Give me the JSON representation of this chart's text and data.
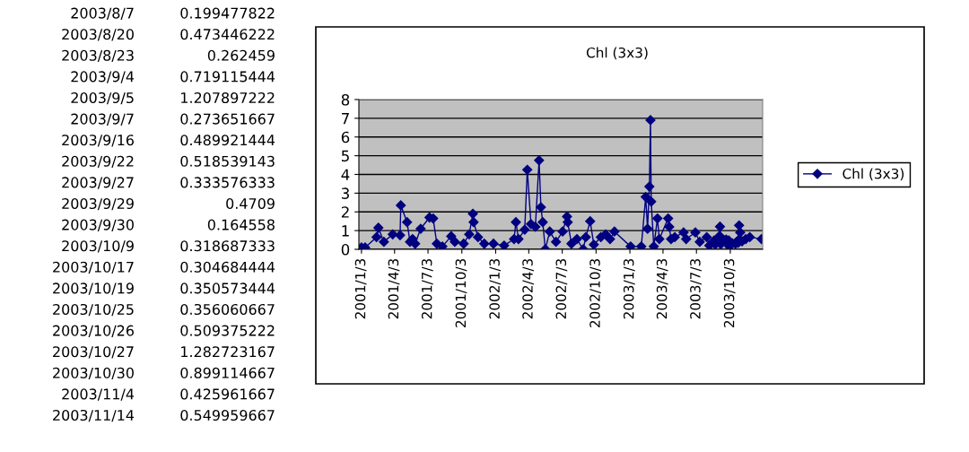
{
  "chart_data": {
    "type": "line",
    "title": "Chl (3x3)",
    "legend": "right",
    "grid": "y",
    "marker": "diamond",
    "line_style": "solid",
    "xlim": [
      "2000-12-27",
      "2003-12-30"
    ],
    "ylim": [
      0,
      8
    ],
    "yticks": [
      0,
      1,
      2,
      3,
      4,
      5,
      6,
      7,
      8
    ],
    "xticks": [
      {
        "value": "2001-01-03",
        "label": "2001/1/3"
      },
      {
        "value": "2001-04-03",
        "label": "2001/4/3"
      },
      {
        "value": "2001-07-03",
        "label": "2001/7/3"
      },
      {
        "value": "2001-10-03",
        "label": "2001/10/3"
      },
      {
        "value": "2002-01-03",
        "label": "2002/1/3"
      },
      {
        "value": "2002-04-03",
        "label": "2002/4/3"
      },
      {
        "value": "2002-07-03",
        "label": "2002/7/3"
      },
      {
        "value": "2002-10-03",
        "label": "2002/10/3"
      },
      {
        "value": "2003-01-03",
        "label": "2003/1/3"
      },
      {
        "value": "2003-04-03",
        "label": "2003/4/3"
      },
      {
        "value": "2003-07-03",
        "label": "2003/7/3"
      },
      {
        "value": "2003-10-03",
        "label": "2003/10/3"
      }
    ],
    "x": [
      "2001-01-03",
      "2001-01-13",
      "2001-02-13",
      "2001-02-18",
      "2001-03-05",
      "2001-03-29",
      "2001-04-18",
      "2001-04-20",
      "2001-05-07",
      "2001-05-15",
      "2001-05-22",
      "2001-05-29",
      "2001-06-13",
      "2001-07-07",
      "2001-07-17",
      "2001-07-27",
      "2001-08-11",
      "2001-09-04",
      "2001-09-14",
      "2001-10-08",
      "2001-10-23",
      "2001-11-02",
      "2001-11-04",
      "2001-11-16",
      "2001-12-03",
      "2001-12-28",
      "2002-01-26",
      "2002-02-22",
      "2002-02-27",
      "2002-03-06",
      "2002-03-23",
      "2002-03-30",
      "2002-04-09",
      "2002-04-21",
      "2002-05-01",
      "2002-05-06",
      "2002-05-11",
      "2002-05-18",
      "2002-05-30",
      "2002-06-16",
      "2002-07-04",
      "2002-07-16",
      "2002-07-18",
      "2002-07-28",
      "2002-08-12",
      "2002-08-29",
      "2002-09-05",
      "2002-09-17",
      "2002-09-27",
      "2002-10-16",
      "2002-10-29",
      "2002-11-10",
      "2002-11-22",
      "2003-01-05",
      "2003-02-03",
      "2003-02-15",
      "2003-02-20",
      "2003-02-25",
      "2003-02-28",
      "2003-03-02",
      "2003-03-09",
      "2003-03-19",
      "2003-03-24",
      "2003-04-17",
      "2003-04-20",
      "2003-04-25",
      "2003-05-05",
      "2003-05-29",
      "2003-06-05",
      "2003-06-30",
      "2003-07-12",
      "2003-07-31",
      "2003-08-07",
      "2003-08-20",
      "2003-08-23",
      "2003-09-04",
      "2003-09-05",
      "2003-09-07",
      "2003-09-16",
      "2003-09-22",
      "2003-09-27",
      "2003-09-29",
      "2003-09-30",
      "2003-10-09",
      "2003-10-17",
      "2003-10-19",
      "2003-10-25",
      "2003-10-26",
      "2003-10-27",
      "2003-10-30",
      "2003-11-04",
      "2003-11-14",
      "2003-11-25",
      "2003-12-27"
    ],
    "series": [
      {
        "name": "Chl (3x3)",
        "color": "#000080",
        "values": [
          0.1,
          0.1,
          0.65,
          1.15,
          0.4,
          0.8,
          0.75,
          2.35,
          1.45,
          0.4,
          0.55,
          0.3,
          1.1,
          1.7,
          1.65,
          0.3,
          0.15,
          0.7,
          0.4,
          0.3,
          0.8,
          1.9,
          1.45,
          0.65,
          0.3,
          0.3,
          0.2,
          0.55,
          1.45,
          0.55,
          1.05,
          4.25,
          1.35,
          1.2,
          4.75,
          2.25,
          1.45,
          0.0,
          0.95,
          0.4,
          0.95,
          1.75,
          1.45,
          0.3,
          0.55,
          0.0,
          0.65,
          1.5,
          0.25,
          0.65,
          0.8,
          0.55,
          0.95,
          0.15,
          0.15,
          2.8,
          1.1,
          3.35,
          6.9,
          2.55,
          0.15,
          1.65,
          0.55,
          1.65,
          1.2,
          0.55,
          0.65,
          0.9,
          0.55,
          0.9,
          0.4,
          0.65,
          0.2,
          0.47,
          0.26,
          0.72,
          1.21,
          0.27,
          0.49,
          0.52,
          0.33,
          0.47,
          0.16,
          0.32,
          0.3,
          0.35,
          0.36,
          0.51,
          1.28,
          0.9,
          0.43,
          0.55,
          0.65,
          0.55
        ]
      }
    ],
    "annotations": [
      "2003/8/7",
      "0.199477822",
      "2003/8/20",
      "0.473446222",
      "2003/8/23",
      "0.262459",
      "2003/9/4",
      "0.719115444",
      "2003/9/5",
      "1.207897222",
      "2003/9/7",
      "0.273651667",
      "2003/9/16",
      "0.489921444",
      "2003/9/22",
      "0.518539143",
      "2003/9/27",
      "0.333576333",
      "2003/9/29",
      "0.4709",
      "2003/9/30",
      "0.164558",
      "2003/10/9",
      "0.318687333",
      "2003/10/17",
      "0.304684444",
      "2003/10/19",
      "0.350573444",
      "2003/10/25",
      "0.356060667",
      "2003/10/26",
      "0.509375222",
      "2003/10/27",
      "1.282723167",
      "2003/10/30",
      "0.899114667",
      "2003/11/4",
      "0.425961667",
      "2003/11/14",
      "0.549959667"
    ]
  }
}
